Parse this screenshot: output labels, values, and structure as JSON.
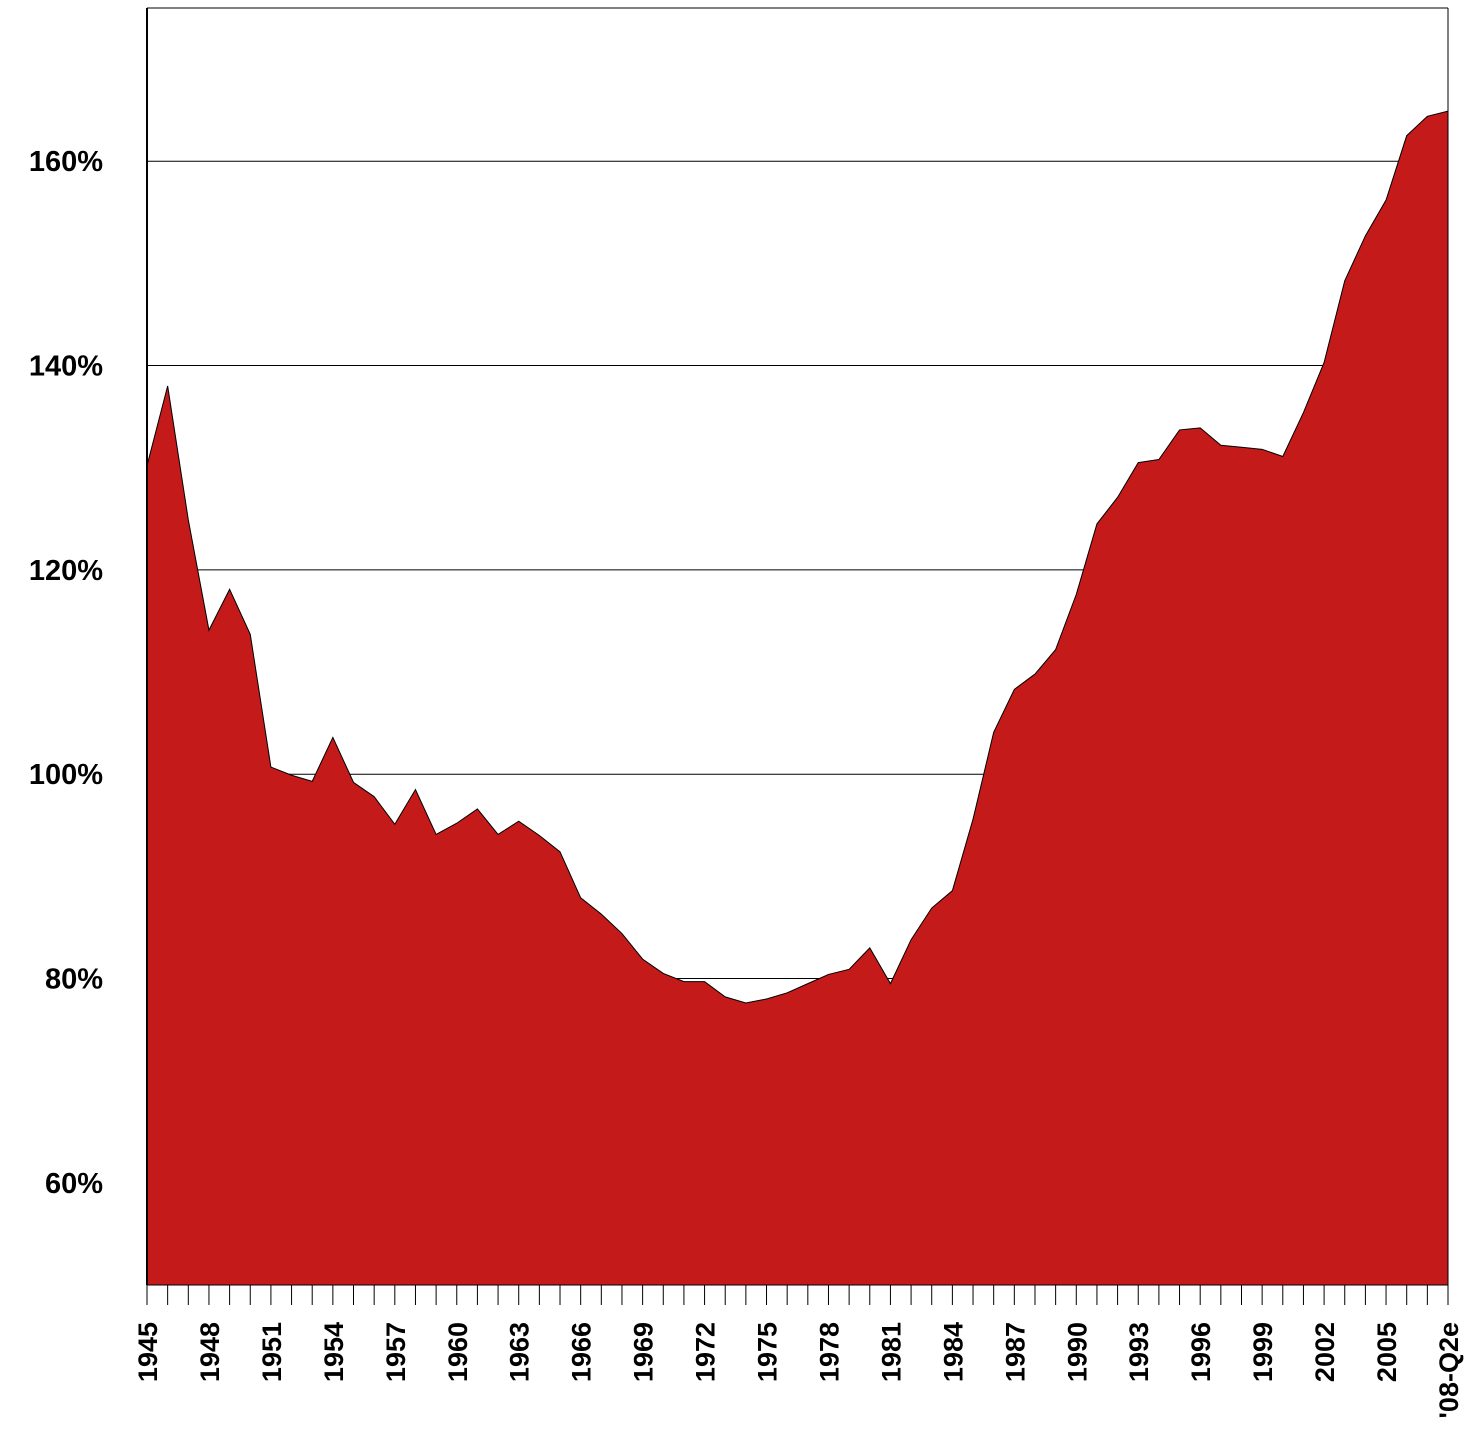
{
  "chart_data": {
    "type": "area",
    "color": "#c41a1a",
    "categories": [
      "1945",
      null,
      null,
      "1948",
      null,
      null,
      "1951",
      null,
      null,
      "1954",
      null,
      null,
      "1957",
      null,
      null,
      "1960",
      null,
      null,
      "1963",
      null,
      null,
      "1966",
      null,
      null,
      "1969",
      null,
      null,
      "1972",
      null,
      null,
      "1975",
      null,
      null,
      "1978",
      null,
      null,
      "1981",
      null,
      null,
      "1984",
      null,
      null,
      "1987",
      null,
      null,
      "1990",
      null,
      null,
      "1993",
      null,
      null,
      "1996",
      null,
      null,
      "1999",
      null,
      null,
      "2002",
      null,
      null,
      "2005",
      null,
      null,
      "'08-Q2e"
    ],
    "values": [
      130.2,
      138.0,
      124.9,
      114.1,
      118.1,
      113.7,
      100.7,
      99.9,
      99.3,
      103.6,
      99.2,
      97.8,
      95.1,
      98.5,
      94.1,
      95.2,
      96.6,
      94.1,
      95.4,
      94.0,
      92.4,
      87.9,
      86.3,
      84.4,
      81.9,
      80.5,
      79.7,
      79.7,
      78.2,
      77.6,
      78.0,
      78.6,
      79.5,
      80.4,
      80.9,
      83.0,
      79.5,
      83.8,
      86.9,
      88.6,
      95.6,
      104.1,
      108.3,
      109.8,
      112.2,
      117.6,
      124.5,
      127.1,
      130.5,
      130.8,
      133.7,
      133.9,
      132.2,
      132.0,
      131.8,
      131.1,
      135.4,
      140.3,
      148.3,
      152.7,
      156.2,
      162.5,
      164.4,
      164.9
    ],
    "ylim": [
      50,
      175
    ],
    "yticks": [
      {
        "value": 60,
        "label": "60%"
      },
      {
        "value": 80,
        "label": "80%"
      },
      {
        "value": 100,
        "label": "100%"
      },
      {
        "value": 120,
        "label": "120%"
      },
      {
        "value": 140,
        "label": "140%"
      },
      {
        "value": 160,
        "label": "160%"
      }
    ],
    "grid": true
  }
}
